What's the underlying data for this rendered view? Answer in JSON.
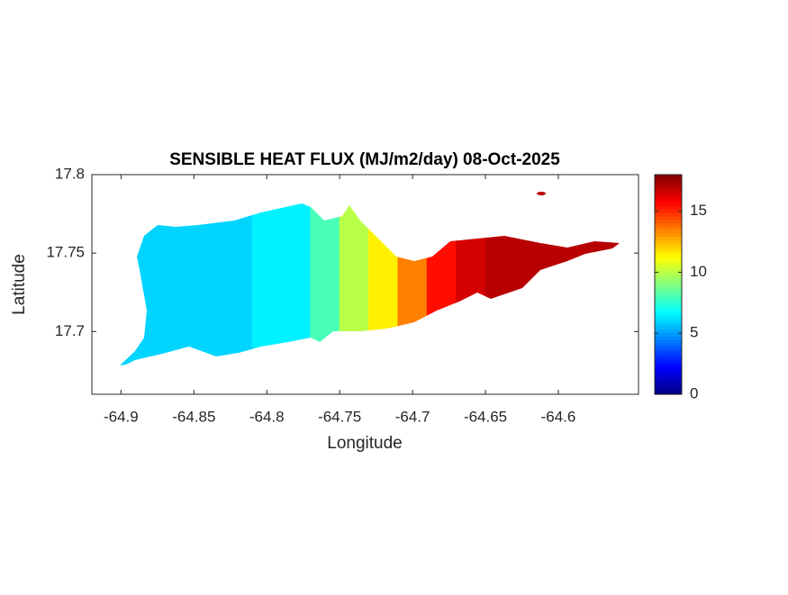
{
  "chart_data": {
    "type": "map",
    "title": "SENSIBLE HEAT FLUX (MJ/m2/day) 08-Oct-2025",
    "x_label": "Longitude",
    "y_label": "Latitude",
    "xlim": [
      -64.92,
      -64.545
    ],
    "ylim": [
      17.66,
      17.8
    ],
    "xticks": [
      -64.9,
      -64.85,
      -64.8,
      -64.75,
      -64.7,
      -64.65,
      -64.6
    ],
    "yticks": [
      17.7,
      17.75,
      17.8
    ],
    "x": [
      -64.9,
      -64.88,
      -64.86,
      -64.84,
      -64.82,
      -64.8,
      -64.78,
      -64.76,
      -64.74,
      -64.72,
      -64.7,
      -64.68,
      -64.66,
      -64.64,
      -64.62,
      -64.6,
      -64.58,
      -64.56
    ],
    "values": [
      6,
      6,
      6,
      6,
      6,
      6.5,
      6.5,
      8,
      10,
      11.5,
      13.5,
      15.5,
      16.5,
      17,
      17,
      17,
      17,
      17
    ],
    "colormap": "jet",
    "clim": [
      0,
      18
    ],
    "colorbar_ticks": [
      0,
      5,
      10,
      15
    ]
  }
}
